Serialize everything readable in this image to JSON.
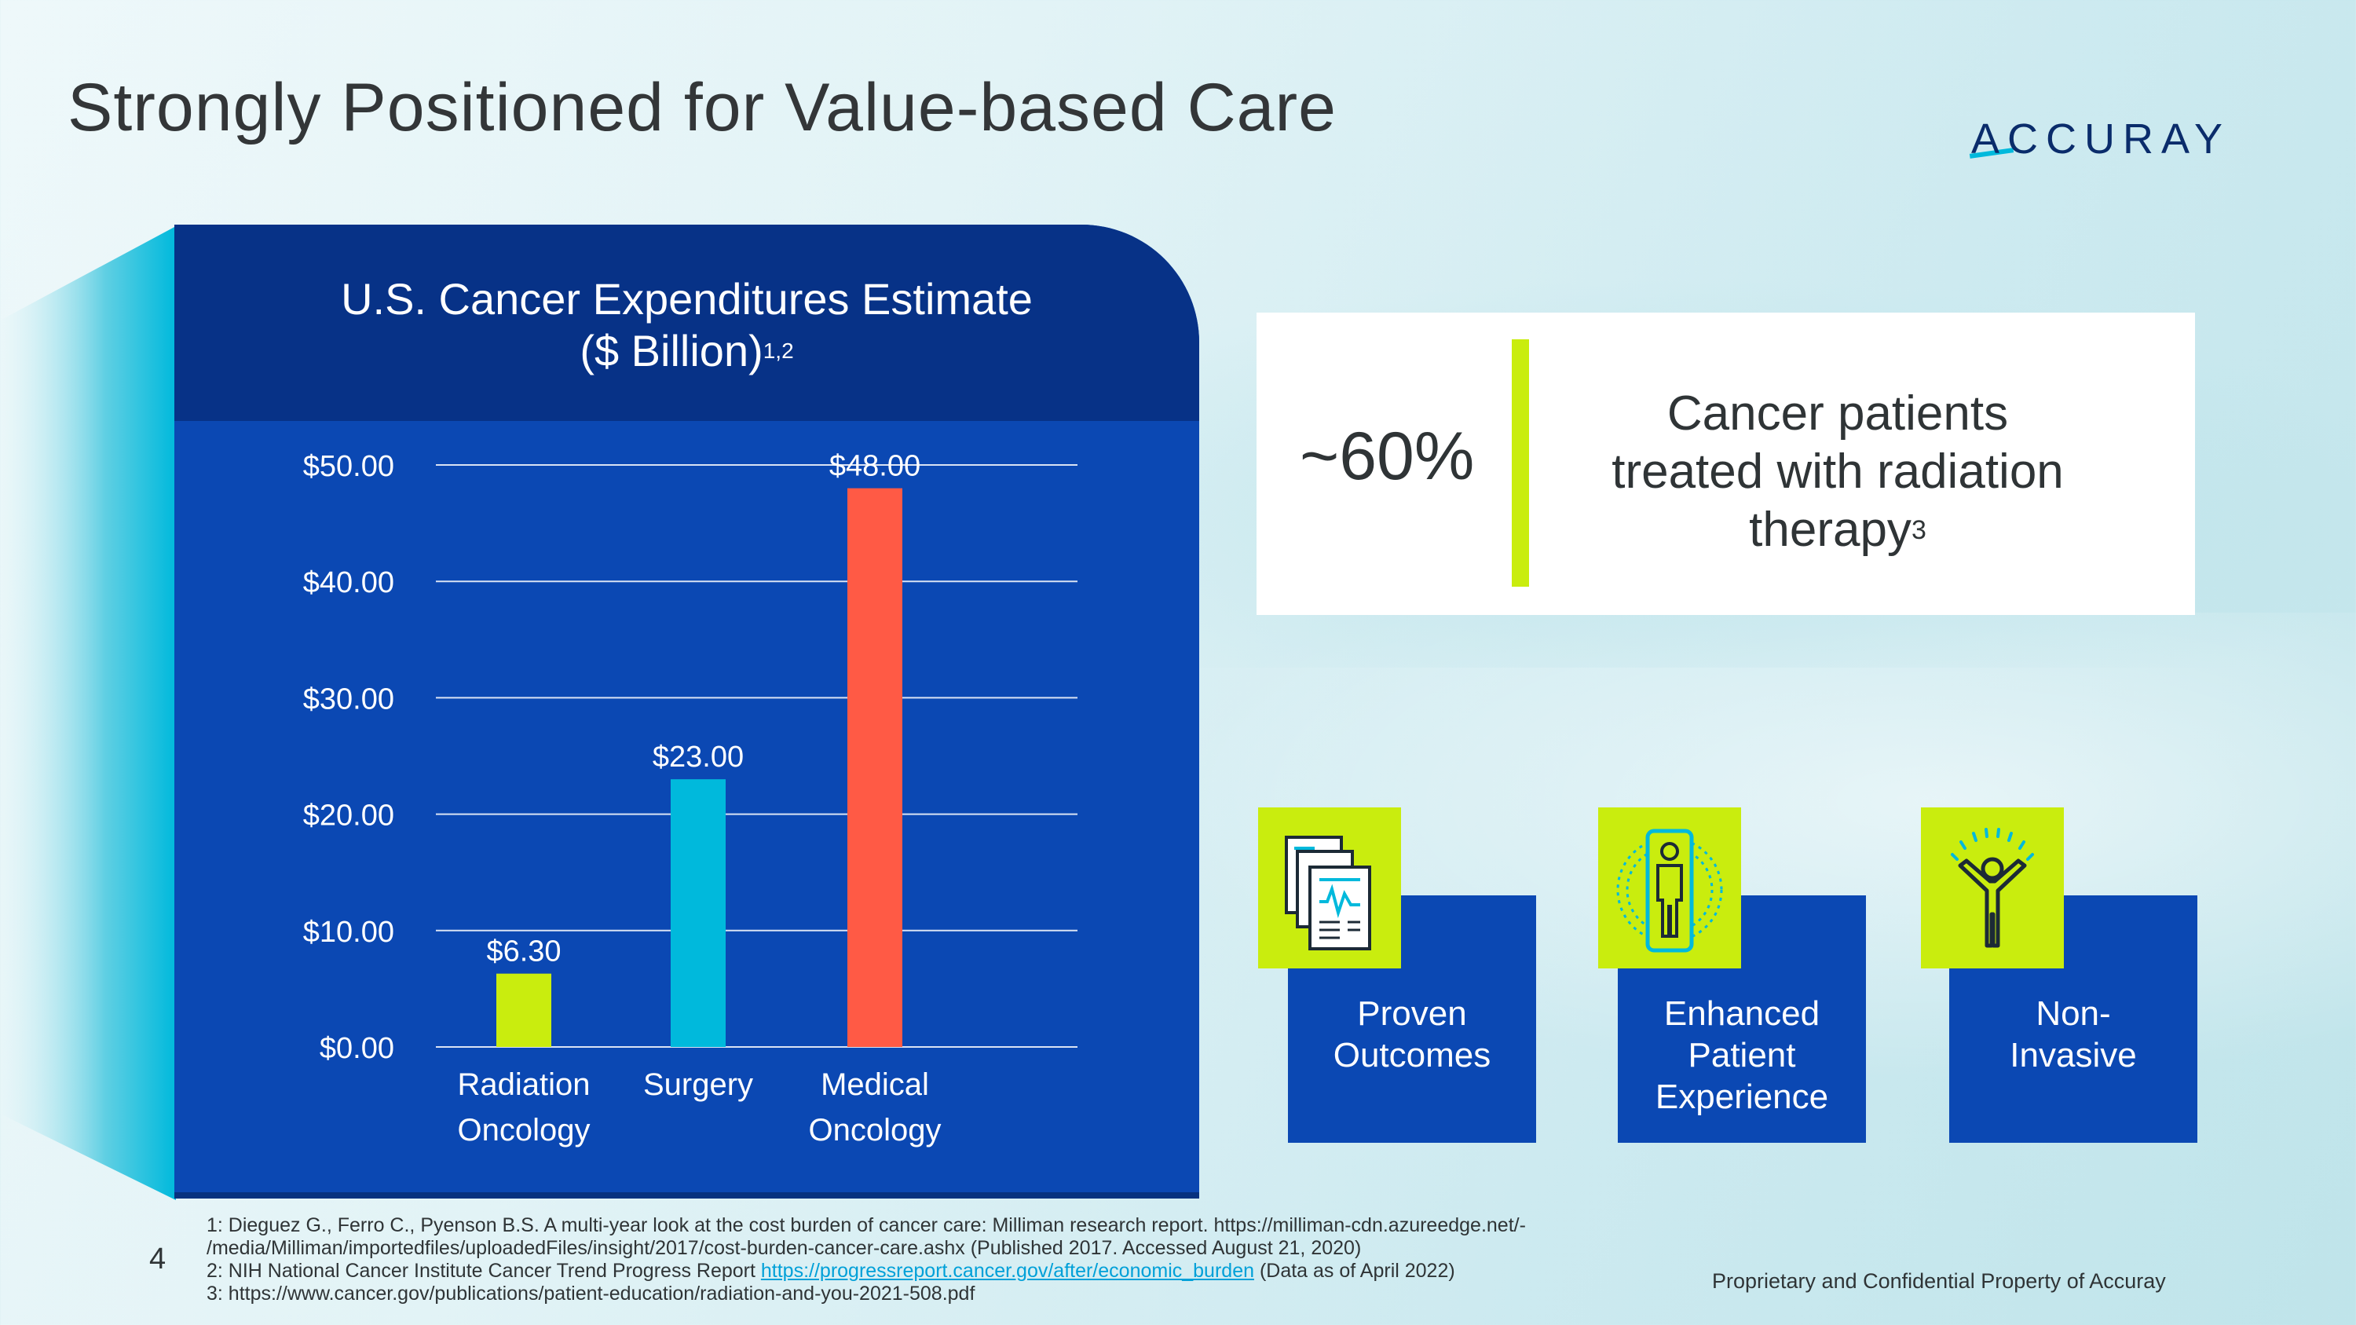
{
  "slide": {
    "title": "Strongly Positioned for Value-based Care",
    "logo_text": "ACCURAY",
    "page_number": "4",
    "confidential": "Proprietary and Confidential Property of Accuray"
  },
  "chart_panel": {
    "title_line1": "U.S. Cancer Expenditures Estimate",
    "title_line2": "($ Billion)",
    "title_sup": "1,2"
  },
  "chart_data": {
    "type": "bar",
    "title": "U.S. Cancer Expenditures Estimate ($ Billion)",
    "categories": [
      [
        "Radiation",
        "Oncology"
      ],
      [
        "Surgery"
      ],
      [
        "Medical",
        "Oncology"
      ]
    ],
    "values": [
      6.3,
      23.0,
      48.0
    ],
    "value_labels": [
      "$6.30",
      "$23.00",
      "$48.00"
    ],
    "bar_colors": [
      "#c9ed0e",
      "#00b9dc",
      "#ff5a45"
    ],
    "y_ticks": [
      0,
      10,
      20,
      30,
      40,
      50
    ],
    "y_tick_labels": [
      "$0.00",
      "$10.00",
      "$20.00",
      "$30.00",
      "$40.00",
      "$50.00"
    ],
    "ylim": [
      0,
      50
    ],
    "grid": true,
    "legend": "none"
  },
  "stat": {
    "value": "~60%",
    "text_line1": "Cancer patients",
    "text_line2": "treated with radiation",
    "text_line3": "therapy",
    "text_sup": "3"
  },
  "features": [
    {
      "line1": "Proven",
      "line2": "Outcomes",
      "line3": "",
      "icon": "documents-chart-icon"
    },
    {
      "line1": "Enhanced",
      "line2": "Patient",
      "line3": "Experience",
      "icon": "patient-body-scan-icon"
    },
    {
      "line1": "Non-",
      "line2": "Invasive",
      "line3": "",
      "icon": "person-celebrating-icon"
    }
  ],
  "footnotes": {
    "n1_line1": "1: Dieguez G., Ferro C., Pyenson B.S. A multi-year look at the cost burden of cancer care: Milliman research report.  https://milliman-cdn.azureedge.net/-",
    "n1_line2": "/media/Milliman/importedfiles/uploadedFiles/insight/2017/cost-burden-cancer-care.ashx (Published 2017. Accessed August 21, 2020)",
    "n2_prefix": "2: NIH National Cancer Institute Cancer Trend Progress Report ",
    "n2_link": "https://progressreport.cancer.gov/after/economic_burden",
    "n2_suffix": " (Data as of April 2022)",
    "n3": "3: https://www.cancer.gov/publications/patient-education/radiation-and-you-2021-508.pdf"
  },
  "colors": {
    "panel_blue": "#0b48b3",
    "header_navy": "#073287",
    "lime": "#c9ed0e",
    "cyan": "#00b9dc",
    "coral": "#ff5a45"
  }
}
